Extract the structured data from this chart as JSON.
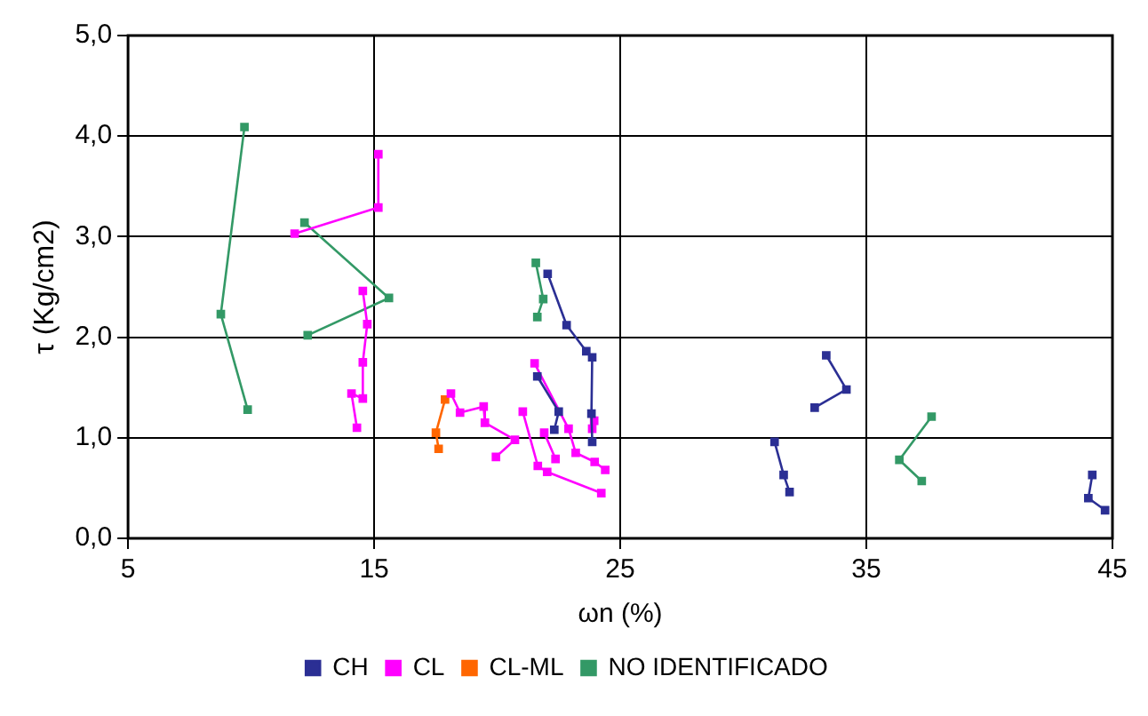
{
  "chart_data": {
    "type": "line",
    "xlabel": "ωn (%)",
    "ylabel": "τ (Kg/cm2)",
    "xlim": [
      5,
      45
    ],
    "xticks": [
      5,
      15,
      25,
      35,
      45
    ],
    "ylim": [
      0,
      5
    ],
    "yticks": [
      {
        "value": 0,
        "label": "0,0"
      },
      {
        "value": 1,
        "label": "1,0"
      },
      {
        "value": 2,
        "label": "2,0"
      },
      {
        "value": 3,
        "label": "3,0"
      },
      {
        "value": 4,
        "label": "4,0"
      },
      {
        "value": 5,
        "label": "5,0"
      }
    ],
    "grid": true,
    "legend": "bottom",
    "marker": "square",
    "line_style": "solid",
    "series": [
      {
        "name": "CH",
        "color": "#2b2f94",
        "x": [
          22.05,
          22.82,
          23.62,
          23.86,
          23.83,
          23.86,
          null,
          21.63,
          22.5,
          22.32,
          null,
          33.37,
          34.19,
          32.9,
          null,
          31.27,
          31.64,
          31.88,
          null,
          44.18,
          44.02,
          44.7
        ],
        "values": [
          2.63,
          2.12,
          1.86,
          1.8,
          1.24,
          0.96,
          null,
          1.61,
          1.26,
          1.08,
          null,
          1.82,
          1.48,
          1.3,
          null,
          0.96,
          0.63,
          0.46,
          null,
          0.63,
          0.4,
          0.28
        ]
      },
      {
        "name": "CL",
        "color": "#ff00ff",
        "x": [
          15.17,
          15.17,
          11.77,
          null,
          14.54,
          14.72,
          14.54,
          14.54,
          14.08,
          14.3,
          null,
          18.12,
          18.49,
          19.45,
          19.5,
          20.72,
          19.95,
          null,
          21.04,
          21.65,
          22.03,
          24.23,
          null,
          21.52,
          22.9,
          23.19,
          23.96,
          24.39,
          null,
          21.91,
          22.37,
          null,
          23.94,
          23.86
        ],
        "values": [
          3.82,
          3.29,
          3.03,
          null,
          2.46,
          2.13,
          1.75,
          1.39,
          1.44,
          1.1,
          null,
          1.44,
          1.25,
          1.31,
          1.15,
          0.98,
          0.81,
          null,
          1.26,
          0.72,
          0.66,
          0.45,
          null,
          1.74,
          1.09,
          0.85,
          0.76,
          0.68,
          null,
          1.05,
          0.79,
          null,
          1.17,
          1.09
        ]
      },
      {
        "name": "CL-ML",
        "color": "#ff6600",
        "x": [
          17.88,
          17.51,
          17.62
        ],
        "values": [
          1.38,
          1.05,
          0.89
        ]
      },
      {
        "name": "NO IDENTIFICADO",
        "color": "#339966",
        "x": [
          9.73,
          8.77,
          9.86,
          null,
          12.17,
          15.6,
          12.3,
          null,
          21.57,
          21.87,
          21.63,
          null,
          37.65,
          36.34,
          37.25
        ],
        "values": [
          4.09,
          2.23,
          1.28,
          null,
          3.14,
          2.39,
          2.02,
          null,
          2.74,
          2.38,
          2.2,
          null,
          1.21,
          0.78,
          0.57
        ]
      }
    ]
  }
}
